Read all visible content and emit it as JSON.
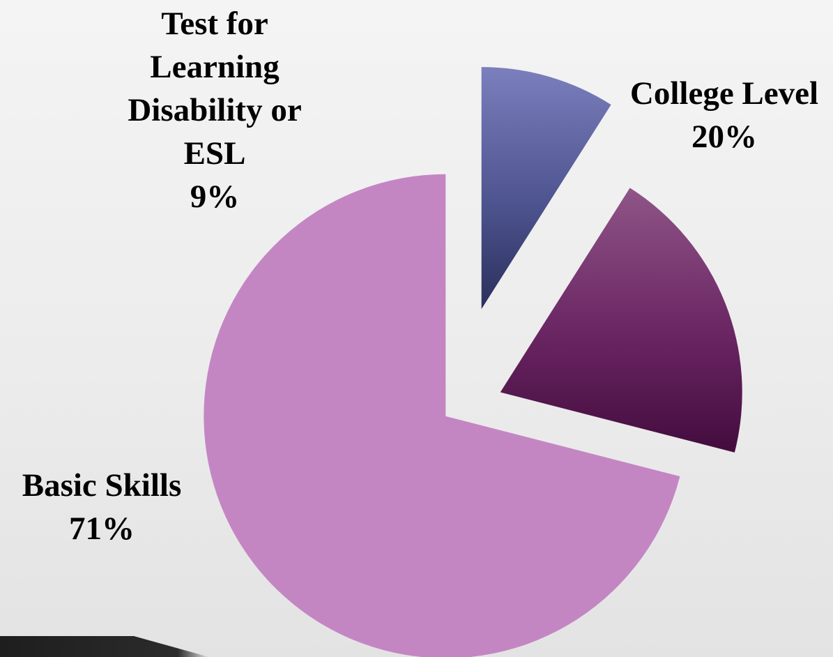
{
  "chart_data": {
    "type": "pie",
    "title": "",
    "exploded": true,
    "slices": [
      {
        "label_lines": [
          "Test for",
          "Learning",
          "Disability or",
          "ESL"
        ],
        "value": 9,
        "value_label": "9%",
        "color": "#4f5590",
        "color_light": "#7b7fbd",
        "color_dark": "#2a2f5c"
      },
      {
        "label_lines": [
          "College Level"
        ],
        "value": 20,
        "value_label": "20%",
        "color": "#6a2563",
        "color_light": "#8f5587",
        "color_dark": "#430c3d"
      },
      {
        "label_lines": [
          "Basic Skills"
        ],
        "value": 71,
        "value_label": "71%",
        "color": "#c386c3",
        "color_light": "#c386c3",
        "color_dark": "#c386c3"
      }
    ]
  }
}
